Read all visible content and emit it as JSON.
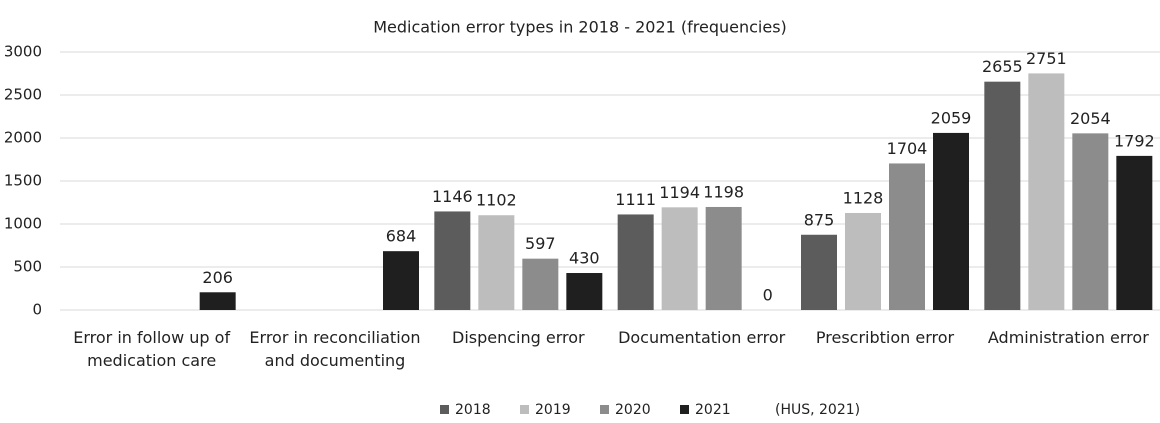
{
  "chart_data": {
    "type": "bar",
    "title": "Medication error types in 2018 - 2021 (frequencies)",
    "categories": [
      "Error in follow up of medication care",
      "Error in reconciliation and documenting",
      "Dispencing error",
      "Documentation error",
      "Prescribtion error",
      "Administration error"
    ],
    "series": [
      {
        "name": "2018",
        "color": "#5c5c5c",
        "values": [
          null,
          null,
          1146,
          1111,
          875,
          2655
        ]
      },
      {
        "name": "2019",
        "color": "#bdbdbd",
        "values": [
          null,
          null,
          1102,
          1194,
          1128,
          2751
        ]
      },
      {
        "name": "2020",
        "color": "#8c8c8c",
        "values": [
          null,
          null,
          597,
          1198,
          1704,
          2054
        ]
      },
      {
        "name": "2021",
        "color": "#1f1f1f",
        "values": [
          206,
          684,
          430,
          0,
          2059,
          1792
        ]
      }
    ],
    "ylim": [
      0,
      3000
    ],
    "yticks": [
      0,
      500,
      1000,
      1500,
      2000,
      2500,
      3000
    ],
    "grid": true,
    "annotation": "(HUS, 2021)"
  }
}
